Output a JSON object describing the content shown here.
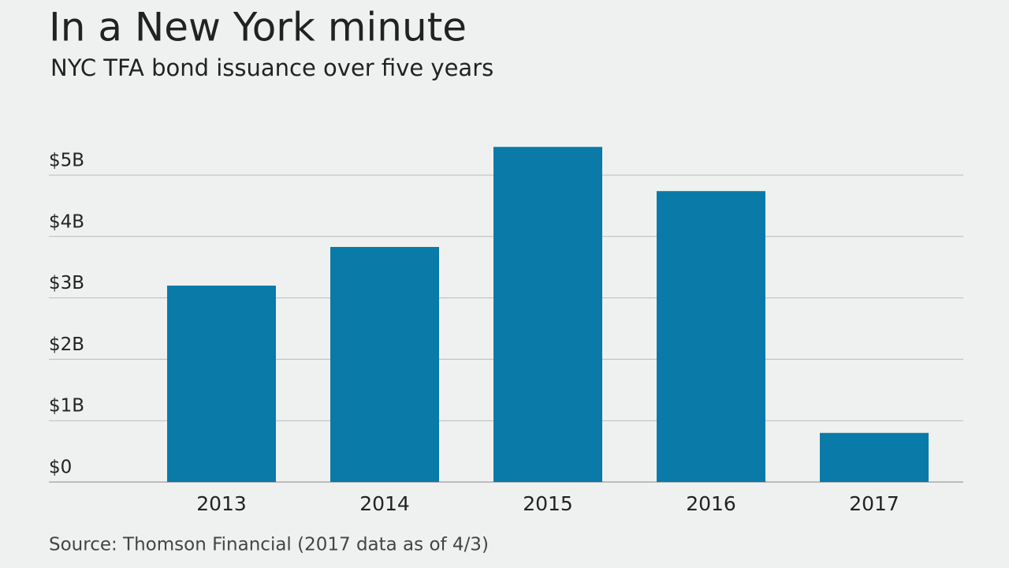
{
  "chart_data": {
    "type": "bar",
    "title": "In a New York minute",
    "subtitle": "NYC TFA bond issuance over five years",
    "source": "Source: Thomson Financial (2017 data as of 4/3)",
    "categories": [
      "2013",
      "2014",
      "2015",
      "2016",
      "2017"
    ],
    "values": [
      3.2,
      3.83,
      5.46,
      4.74,
      0.8
    ],
    "color": "#0a7aa8",
    "ylim": [
      0,
      5.5
    ],
    "yticks": [
      {
        "value": 0,
        "label": "$0"
      },
      {
        "value": 1,
        "label": "$1B"
      },
      {
        "value": 2,
        "label": "$2B"
      },
      {
        "value": 3,
        "label": "$3B"
      },
      {
        "value": 4,
        "label": "$4B"
      },
      {
        "value": 5,
        "label": "$5B"
      }
    ],
    "grid": true
  }
}
